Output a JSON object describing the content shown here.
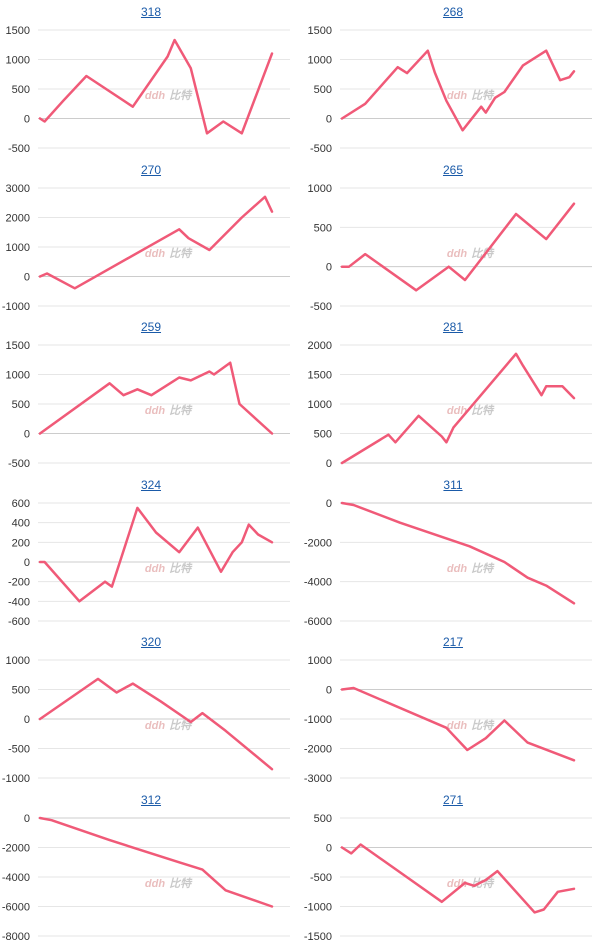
{
  "colors": {
    "line": "#f05a78",
    "grid": "#e6e6e6",
    "axis": "#cccccc",
    "watermark_red": "#e8b8b8",
    "watermark_gray": "#c4c4c4",
    "link": "#1a5aa8"
  },
  "watermark": "ddh 比特",
  "chart_data": [
    {
      "type": "line",
      "title": "318",
      "yticks": [
        1500,
        1000,
        500,
        0,
        -500
      ],
      "ylim": [
        -500,
        1500
      ],
      "grid": true,
      "series": [
        {
          "x": [
            0,
            2,
            10,
            20,
            40,
            55,
            58,
            65,
            72,
            79,
            87,
            100
          ],
          "values": [
            0,
            -50,
            300,
            720,
            200,
            1050,
            1330,
            850,
            -250,
            -50,
            -250,
            1100
          ]
        }
      ]
    },
    {
      "type": "line",
      "title": "268",
      "yticks": [
        1500,
        1000,
        500,
        0,
        -500
      ],
      "ylim": [
        -500,
        1500
      ],
      "grid": true,
      "series": [
        {
          "x": [
            0,
            10,
            24,
            28,
            37,
            40,
            45,
            52,
            60,
            62,
            66,
            70,
            78,
            88,
            94,
            98,
            100
          ],
          "values": [
            0,
            250,
            870,
            770,
            1150,
            780,
            300,
            -200,
            200,
            100,
            350,
            450,
            900,
            1150,
            650,
            700,
            800
          ]
        }
      ]
    },
    {
      "type": "line",
      "title": "270",
      "yticks": [
        3000,
        2000,
        1000,
        0,
        -1000
      ],
      "ylim": [
        -1000,
        3000
      ],
      "grid": true,
      "series": [
        {
          "x": [
            0,
            3,
            15,
            60,
            64,
            73,
            87,
            97,
            100
          ],
          "values": [
            0,
            100,
            -400,
            1600,
            1300,
            900,
            2000,
            2700,
            2200
          ]
        }
      ]
    },
    {
      "type": "line",
      "title": "265",
      "yticks": [
        1000,
        500,
        0,
        -500
      ],
      "ylim": [
        -500,
        1000
      ],
      "grid": true,
      "series": [
        {
          "x": [
            0,
            3,
            10,
            32,
            46,
            53,
            75,
            88,
            100
          ],
          "values": [
            0,
            0,
            160,
            -300,
            0,
            -170,
            670,
            350,
            800
          ]
        }
      ]
    },
    {
      "type": "line",
      "title": "259",
      "yticks": [
        1500,
        1000,
        500,
        0,
        -500
      ],
      "ylim": [
        -500,
        1500
      ],
      "grid": true,
      "series": [
        {
          "x": [
            0,
            30,
            36,
            42,
            48,
            60,
            65,
            73,
            75,
            82,
            86,
            100
          ],
          "values": [
            0,
            850,
            650,
            750,
            650,
            950,
            900,
            1050,
            1000,
            1200,
            500,
            0
          ]
        }
      ]
    },
    {
      "type": "line",
      "title": "281",
      "yticks": [
        2000,
        1500,
        1000,
        500,
        0
      ],
      "ylim": [
        0,
        2000
      ],
      "grid": true,
      "series": [
        {
          "x": [
            0,
            20,
            23,
            33,
            43,
            45,
            48,
            75,
            78,
            86,
            88,
            95,
            100
          ],
          "values": [
            0,
            480,
            350,
            800,
            450,
            350,
            600,
            1850,
            1650,
            1150,
            1300,
            1300,
            1100
          ]
        }
      ]
    },
    {
      "type": "line",
      "title": "324",
      "yticks": [
        600,
        400,
        200,
        0,
        -200,
        -400,
        -600
      ],
      "ylim": [
        -600,
        600
      ],
      "grid": true,
      "series": [
        {
          "x": [
            0,
            2,
            17,
            28,
            31,
            42,
            50,
            60,
            68,
            78,
            83,
            87,
            90,
            94,
            100
          ],
          "values": [
            0,
            0,
            -400,
            -200,
            -250,
            550,
            300,
            100,
            350,
            -100,
            100,
            200,
            380,
            280,
            200
          ]
        }
      ]
    },
    {
      "type": "line",
      "title": "311",
      "yticks": [
        0,
        -2000,
        -4000,
        -6000
      ],
      "ylim": [
        -6000,
        0
      ],
      "grid": true,
      "series": [
        {
          "x": [
            0,
            5,
            25,
            55,
            70,
            80,
            88,
            100
          ],
          "values": [
            0,
            -100,
            -1000,
            -2200,
            -3000,
            -3800,
            -4200,
            -5100
          ]
        }
      ]
    },
    {
      "type": "line",
      "title": "320",
      "yticks": [
        1000,
        500,
        0,
        -500,
        -1000
      ],
      "ylim": [
        -1000,
        1000
      ],
      "grid": true,
      "series": [
        {
          "x": [
            0,
            25,
            33,
            40,
            52,
            65,
            70,
            80,
            100
          ],
          "values": [
            0,
            680,
            450,
            600,
            300,
            -50,
            100,
            -200,
            -850
          ]
        }
      ]
    },
    {
      "type": "line",
      "title": "217",
      "yticks": [
        1000,
        0,
        -1000,
        -2000,
        -3000
      ],
      "ylim": [
        -3000,
        1000
      ],
      "grid": true,
      "series": [
        {
          "x": [
            0,
            5,
            45,
            54,
            62,
            70,
            80,
            100
          ],
          "values": [
            0,
            50,
            -1300,
            -2050,
            -1650,
            -1050,
            -1800,
            -2400
          ]
        }
      ]
    },
    {
      "type": "line",
      "title": "312",
      "yticks": [
        0,
        -2000,
        -4000,
        -6000,
        -8000
      ],
      "ylim": [
        -8000,
        0
      ],
      "grid": true,
      "series": [
        {
          "x": [
            0,
            5,
            30,
            60,
            70,
            80,
            100
          ],
          "values": [
            0,
            -150,
            -1500,
            -3000,
            -3500,
            -4900,
            -6000
          ]
        }
      ]
    },
    {
      "type": "line",
      "title": "271",
      "yticks": [
        500,
        0,
        -500,
        -1000,
        -1500
      ],
      "ylim": [
        -1500,
        500
      ],
      "grid": true,
      "series": [
        {
          "x": [
            0,
            4,
            8,
            43,
            53,
            57,
            62,
            67,
            83,
            87,
            93,
            100
          ],
          "values": [
            0,
            -100,
            50,
            -920,
            -600,
            -650,
            -550,
            -400,
            -1100,
            -1050,
            -750,
            -700
          ]
        }
      ]
    }
  ]
}
